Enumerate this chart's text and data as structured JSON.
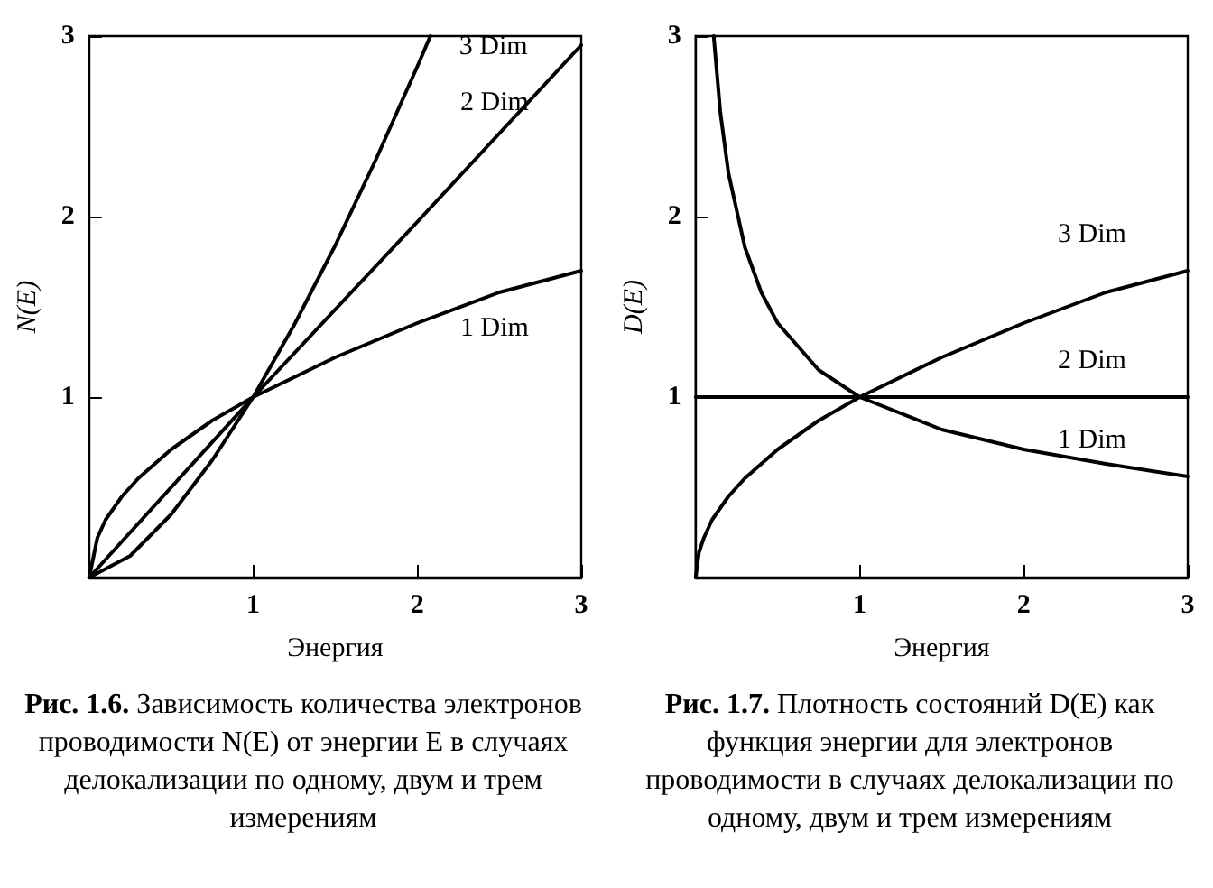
{
  "chart_data": [
    {
      "type": "line",
      "xlabel": "Энергия",
      "ylabel": "N(E)",
      "xlim": [
        0,
        3
      ],
      "ylim": [
        0,
        3
      ],
      "xticks": [
        1,
        2,
        3
      ],
      "yticks": [
        1,
        2,
        3
      ],
      "series": [
        {
          "name": "1 Dim",
          "color": "#000000",
          "x": [
            0,
            0.05,
            0.1,
            0.2,
            0.3,
            0.5,
            0.75,
            1,
            1.5,
            2,
            2.5,
            3
          ],
          "values": [
            0,
            0.22,
            0.32,
            0.45,
            0.55,
            0.71,
            0.87,
            1,
            1.22,
            1.41,
            1.58,
            1.7
          ]
        },
        {
          "name": "2 Dim",
          "color": "#000000",
          "x": [
            0,
            1,
            2,
            3
          ],
          "values": [
            0,
            1,
            1.97,
            2.95
          ]
        },
        {
          "name": "3 Dim",
          "color": "#000000",
          "x": [
            0,
            0.25,
            0.5,
            0.75,
            1,
            1.25,
            1.5,
            1.75,
            2,
            2.08
          ],
          "values": [
            0,
            0.12,
            0.35,
            0.65,
            1,
            1.4,
            1.84,
            2.32,
            2.83,
            3
          ]
        }
      ],
      "annotations": [
        "Рис. 1.6. Зависимость количества электронов проводимости N(E) от энергии E в случаях делокализации по одному, двум и трем измерениям"
      ]
    },
    {
      "type": "line",
      "xlabel": "Энергия",
      "ylabel": "D(E)",
      "xlim": [
        0,
        3
      ],
      "ylim": [
        0,
        3
      ],
      "xticks": [
        1,
        2,
        3
      ],
      "yticks": [
        1,
        2,
        3
      ],
      "series": [
        {
          "name": "1 Dim",
          "color": "#000000",
          "x": [
            0.11,
            0.15,
            0.2,
            0.3,
            0.4,
            0.5,
            0.75,
            1,
            1.5,
            2,
            2.5,
            3
          ],
          "values": [
            3,
            2.58,
            2.24,
            1.83,
            1.58,
            1.41,
            1.15,
            1,
            0.82,
            0.71,
            0.63,
            0.56
          ]
        },
        {
          "name": "2 Dim",
          "color": "#000000",
          "x": [
            0,
            3
          ],
          "values": [
            1,
            1
          ]
        },
        {
          "name": "3 Dim",
          "color": "#000000",
          "x": [
            0,
            0.02,
            0.05,
            0.1,
            0.2,
            0.3,
            0.5,
            0.75,
            1,
            1.5,
            2,
            2.5,
            3
          ],
          "values": [
            0,
            0.14,
            0.22,
            0.32,
            0.45,
            0.55,
            0.71,
            0.87,
            1,
            1.22,
            1.41,
            1.58,
            1.7
          ]
        }
      ],
      "annotations": [
        "Рис. 1.7. Плотность состояний D(E) как функция энергии для электронов проводимости в случаях делокализации по одному, двум и трем измерениям"
      ]
    }
  ]
}
